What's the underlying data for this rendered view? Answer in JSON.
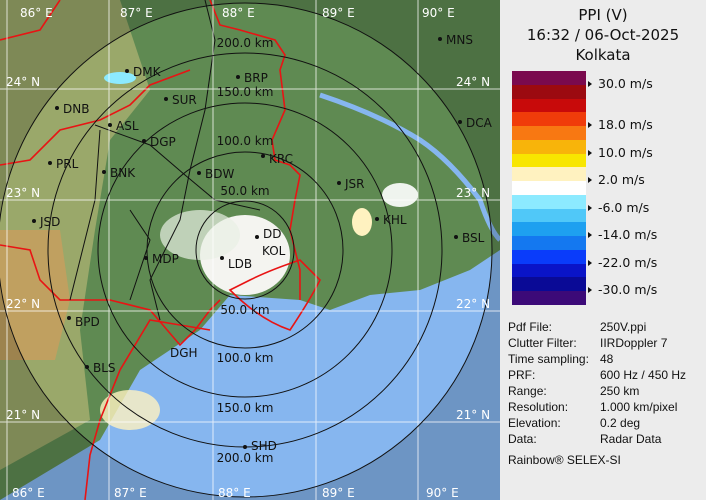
{
  "map": {
    "longitude_labels": [
      "86° E",
      "87° E",
      "88° E",
      "89° E",
      "90° E"
    ],
    "latitude_labels": [
      "24° N",
      "23° N",
      "22° N",
      "21° N"
    ],
    "range_labels": [
      "200.0 km",
      "150.0 km",
      "100.0 km",
      "50.0 km",
      "50.0 km",
      "100.0 km",
      "150.0 km",
      "200.0 km"
    ],
    "stations": [
      "MNS",
      "DMK",
      "BRP",
      "DNB",
      "SUR",
      "ASL",
      "DCA",
      "DGP",
      "KRC",
      "PRL",
      "BNK",
      "BDW",
      "JSR",
      "KHL",
      "JSD",
      "DD",
      "KOL",
      "LDB",
      "BSL",
      "MDP",
      "BPD",
      "BLS",
      "DGH",
      "SHD"
    ],
    "colors": {
      "land": "#5f8a52",
      "sea": "#86b6ef",
      "border": "#e81414",
      "rings": "#111111"
    }
  },
  "panel": {
    "title": "PPI (V)",
    "datetime": "16:32 / 06-Oct-2025",
    "location": "Kolkata",
    "scale_colors": [
      "#7a0a4e",
      "#9c0a10",
      "#c80a0a",
      "#f03c0a",
      "#f87812",
      "#f8b40a",
      "#f8e600",
      "#fff2c0",
      "#ffffff",
      "#8ceaff",
      "#50c8f8",
      "#1ea0f0",
      "#1478f0",
      "#0a3cfa",
      "#0a14c8",
      "#0a0a96",
      "#3c0a78"
    ],
    "scale_labels": [
      "30.0 m/s",
      "18.0 m/s",
      "10.0 m/s",
      "2.0 m/s",
      "-6.0 m/s",
      "-14.0 m/s",
      "-22.0 m/s",
      "-30.0 m/s"
    ],
    "info": [
      {
        "key": "Pdf File:",
        "value": "250V.ppi"
      },
      {
        "key": "Clutter Filter:",
        "value": "IIRDoppler 7"
      },
      {
        "key": "Time sampling:",
        "value": "48"
      },
      {
        "key": "PRF:",
        "value": "600 Hz / 450 Hz"
      },
      {
        "key": "Range:",
        "value": "250 km"
      },
      {
        "key": "Resolution:",
        "value": "1.000 km/pixel"
      },
      {
        "key": "Elevation:",
        "value": "0.2 deg"
      },
      {
        "key": "Data:",
        "value": "Radar Data"
      }
    ],
    "footer": "Rainbow® SELEX-SI"
  }
}
